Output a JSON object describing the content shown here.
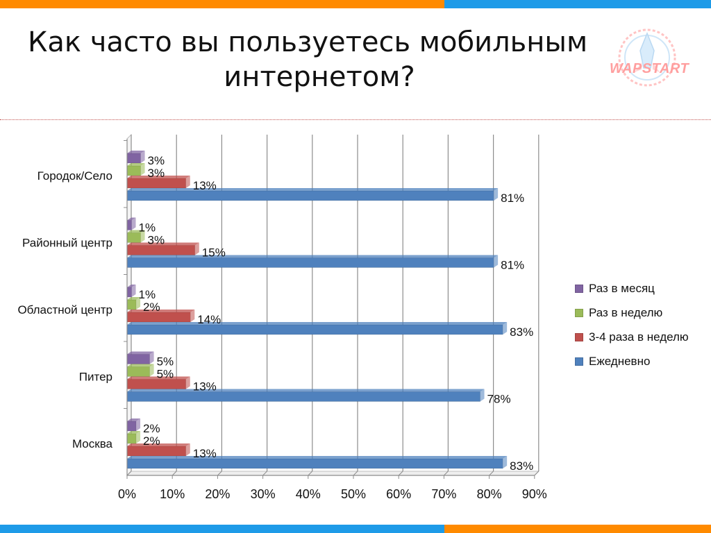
{
  "page": {
    "title_line1": "Как часто вы пользуетесь мобильным",
    "title_line2": "интернетом?",
    "logo_text": "WAPSTART"
  },
  "colors": {
    "orange": "#ff8a00",
    "blue_band": "#1e9be8"
  },
  "chart_data": {
    "type": "bar",
    "orientation": "horizontal",
    "categories": [
      "Москва",
      "Питер",
      "Областной центр",
      "Районный центр",
      "Городок/Село"
    ],
    "series": [
      {
        "name": "Ежедневно",
        "color": "#4f81bd",
        "values": [
          83,
          78,
          83,
          81,
          81
        ],
        "labels": [
          "83%",
          "78%",
          "83%",
          "81%",
          "81%"
        ]
      },
      {
        "name": "3-4 раза в неделю",
        "color": "#c0504d",
        "values": [
          13,
          13,
          14,
          15,
          13
        ],
        "labels": [
          "13%",
          "13%",
          "14%",
          "15%",
          "13%"
        ]
      },
      {
        "name": "Раз в неделю",
        "color": "#9bbb59",
        "values": [
          2,
          5,
          2,
          3,
          3
        ],
        "labels": [
          "2%",
          "5%",
          "2%",
          "3%",
          "3%"
        ]
      },
      {
        "name": "Раз в месяц",
        "color": "#8064a2",
        "values": [
          2,
          5,
          1,
          1,
          3
        ],
        "labels": [
          "2%",
          "5%",
          "1%",
          "1%",
          "3%"
        ]
      }
    ],
    "xlim": [
      0,
      90
    ],
    "x_ticks": [
      "0%",
      "10%",
      "20%",
      "30%",
      "40%",
      "50%",
      "60%",
      "70%",
      "80%",
      "90%"
    ],
    "grid": true,
    "legend_position": "right",
    "legend_order": [
      "Раз в месяц",
      "Раз в неделю",
      "3-4 раза в неделю",
      "Ежедневно"
    ]
  }
}
